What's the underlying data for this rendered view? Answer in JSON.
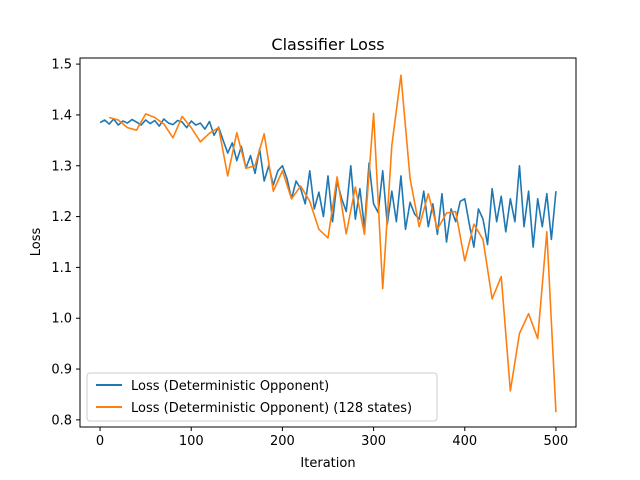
{
  "chart_data": {
    "type": "line",
    "title": "Classifier Loss",
    "xlabel": "Iteration",
    "ylabel": "Loss",
    "xlim": [
      -22,
      522
    ],
    "ylim": [
      0.786,
      1.512
    ],
    "xticks": [
      0,
      100,
      200,
      300,
      400,
      500
    ],
    "yticks": [
      0.8,
      0.9,
      1.0,
      1.1,
      1.2,
      1.3,
      1.4,
      1.5
    ],
    "ytick_labels": [
      "0.8",
      "0.9",
      "1.0",
      "1.1",
      "1.2",
      "1.3",
      "1.4",
      "1.5"
    ],
    "grid": false,
    "legend_position": "lower-left",
    "series": [
      {
        "name": "Loss (Deterministic Opponent)",
        "color": "#1f77b4",
        "x": [
          0,
          5,
          10,
          15,
          20,
          25,
          30,
          35,
          40,
          45,
          50,
          55,
          60,
          65,
          70,
          75,
          80,
          85,
          90,
          95,
          100,
          105,
          110,
          115,
          120,
          125,
          130,
          135,
          140,
          145,
          150,
          155,
          160,
          165,
          170,
          175,
          180,
          185,
          190,
          195,
          200,
          205,
          210,
          215,
          220,
          225,
          230,
          235,
          240,
          245,
          250,
          255,
          260,
          265,
          270,
          275,
          280,
          285,
          290,
          295,
          300,
          305,
          310,
          315,
          320,
          325,
          330,
          335,
          340,
          345,
          350,
          355,
          360,
          365,
          370,
          375,
          380,
          385,
          390,
          395,
          400,
          405,
          410,
          415,
          420,
          425,
          430,
          435,
          440,
          445,
          450,
          455,
          460,
          465,
          470,
          475,
          480,
          485,
          490,
          495,
          500
        ],
        "values": [
          1.385,
          1.39,
          1.382,
          1.392,
          1.38,
          1.388,
          1.384,
          1.391,
          1.386,
          1.38,
          1.39,
          1.383,
          1.389,
          1.378,
          1.392,
          1.384,
          1.381,
          1.389,
          1.386,
          1.375,
          1.388,
          1.38,
          1.384,
          1.372,
          1.387,
          1.36,
          1.376,
          1.35,
          1.325,
          1.345,
          1.31,
          1.338,
          1.295,
          1.32,
          1.285,
          1.333,
          1.27,
          1.3,
          1.262,
          1.29,
          1.3,
          1.275,
          1.235,
          1.27,
          1.255,
          1.225,
          1.29,
          1.215,
          1.248,
          1.2,
          1.28,
          1.19,
          1.27,
          1.235,
          1.21,
          1.3,
          1.195,
          1.255,
          1.178,
          1.305,
          1.225,
          1.208,
          1.29,
          1.185,
          1.25,
          1.19,
          1.28,
          1.175,
          1.228,
          1.205,
          1.195,
          1.25,
          1.18,
          1.225,
          1.165,
          1.245,
          1.15,
          1.215,
          1.19,
          1.23,
          1.235,
          1.185,
          1.14,
          1.215,
          1.195,
          1.145,
          1.255,
          1.19,
          1.24,
          1.17,
          1.235,
          1.19,
          1.3,
          1.18,
          1.25,
          1.14,
          1.235,
          1.18,
          1.245,
          1.155,
          1.25
        ]
      },
      {
        "name": "Loss (Deterministic Opponent) (128 states)",
        "color": "#ff7f0e",
        "x": [
          10,
          20,
          30,
          40,
          50,
          60,
          70,
          80,
          90,
          100,
          110,
          120,
          130,
          140,
          150,
          160,
          170,
          180,
          190,
          200,
          210,
          220,
          230,
          240,
          250,
          260,
          270,
          280,
          290,
          300,
          310,
          320,
          330,
          340,
          350,
          360,
          370,
          380,
          390,
          400,
          410,
          420,
          430,
          440,
          450,
          460,
          470,
          480,
          490,
          500
        ],
        "values": [
          1.395,
          1.39,
          1.375,
          1.37,
          1.402,
          1.395,
          1.382,
          1.355,
          1.397,
          1.375,
          1.347,
          1.364,
          1.375,
          1.28,
          1.365,
          1.295,
          1.3,
          1.363,
          1.25,
          1.29,
          1.235,
          1.26,
          1.23,
          1.175,
          1.158,
          1.278,
          1.166,
          1.258,
          1.165,
          1.403,
          1.058,
          1.34,
          1.478,
          1.275,
          1.18,
          1.245,
          1.175,
          1.207,
          1.21,
          1.113,
          1.185,
          1.155,
          1.038,
          1.082,
          0.857,
          0.97,
          1.009,
          0.96,
          1.17,
          0.815
        ]
      }
    ]
  }
}
